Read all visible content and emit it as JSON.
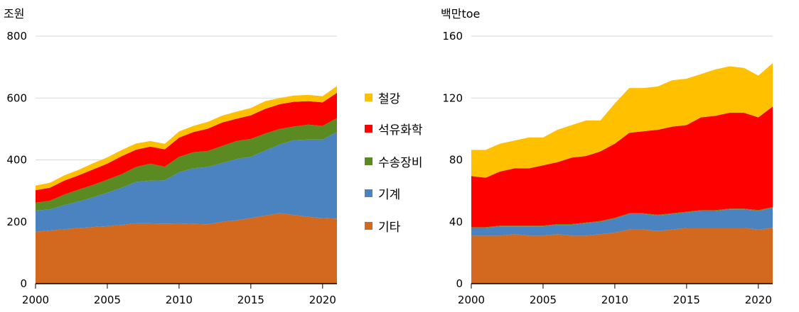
{
  "colors": {
    "steel": "#FFC000",
    "petrochemical": "#FF0000",
    "transport": "#5B8A23",
    "machinery": "#4A83C0",
    "other": "#D2691E"
  },
  "legend": [
    {
      "label": "철강",
      "color": "#FFC000"
    },
    {
      "label": "석유화학",
      "color": "#FF0000"
    },
    {
      "label": "수송장비",
      "color": "#5B8A23"
    },
    {
      "label": "기계",
      "color": "#4A83C0"
    },
    {
      "label": "기타",
      "color": "#D2691E"
    }
  ],
  "chart_data": [
    {
      "type": "area",
      "stacked": true,
      "unit_label": "조원",
      "x": [
        2000,
        2001,
        2002,
        2003,
        2004,
        2005,
        2006,
        2007,
        2008,
        2009,
        2010,
        2011,
        2012,
        2013,
        2014,
        2015,
        2016,
        2017,
        2018,
        2019,
        2020,
        2021
      ],
      "ylim": [
        0,
        800
      ],
      "xlim": [
        2000,
        2021
      ],
      "yticks": [
        "0",
        "200",
        "400",
        "600",
        "800"
      ],
      "xticks": [
        "2000",
        "2005",
        "2010",
        "2015",
        "2020"
      ],
      "series": [
        {
          "name": "기타",
          "values": [
            168,
            172,
            176,
            180,
            183,
            186,
            190,
            195,
            195,
            194,
            195,
            193,
            192,
            200,
            205,
            212,
            220,
            228,
            222,
            216,
            212,
            210
          ]
        },
        {
          "name": "기계",
          "values": [
            68,
            68,
            78,
            86,
            96,
            108,
            120,
            134,
            138,
            140,
            165,
            180,
            185,
            190,
            198,
            198,
            210,
            222,
            242,
            250,
            254,
            280
          ]
        },
        {
          "name": "수송장비",
          "values": [
            26,
            28,
            34,
            38,
            40,
            42,
            44,
            48,
            55,
            44,
            50,
            52,
            52,
            55,
            58,
            58,
            55,
            50,
            44,
            48,
            44,
            45
          ]
        },
        {
          "name": "석유화학",
          "values": [
            40,
            42,
            45,
            46,
            50,
            52,
            58,
            56,
            55,
            56,
            62,
            65,
            72,
            76,
            72,
            76,
            80,
            80,
            80,
            76,
            76,
            82
          ]
        },
        {
          "name": "철강",
          "values": [
            15,
            16,
            17,
            18,
            20,
            20,
            20,
            20,
            18,
            18,
            20,
            20,
            22,
            22,
            23,
            24,
            25,
            20,
            20,
            20,
            20,
            22
          ]
        }
      ]
    },
    {
      "type": "area",
      "stacked": true,
      "unit_label": "백만toe",
      "x": [
        2000,
        2001,
        2002,
        2003,
        2004,
        2005,
        2006,
        2007,
        2008,
        2009,
        2010,
        2011,
        2012,
        2013,
        2014,
        2015,
        2016,
        2017,
        2018,
        2019,
        2020,
        2021
      ],
      "ylim": [
        0,
        160
      ],
      "xlim": [
        2000,
        2021
      ],
      "yticks": [
        "0",
        "40",
        "80",
        "120",
        "160"
      ],
      "xticks": [
        "2000",
        "2005",
        "2010",
        "2015",
        "2020"
      ],
      "series": [
        {
          "name": "기타",
          "values": [
            31,
            31,
            31,
            32,
            31,
            31,
            32,
            31,
            31,
            32,
            33,
            35,
            35,
            34,
            35,
            36,
            36,
            36,
            36,
            36,
            35,
            36
          ]
        },
        {
          "name": "기계",
          "values": [
            5,
            5,
            6,
            5,
            6,
            6,
            6,
            7,
            8,
            8,
            9,
            10,
            10,
            10,
            10,
            10,
            11,
            11,
            12,
            12,
            12,
            13
          ]
        },
        {
          "name": "수송장비",
          "values": [
            0.5,
            0.5,
            0.5,
            0.5,
            0.5,
            0.5,
            0.5,
            0.5,
            0.5,
            0.5,
            0.5,
            0.5,
            0.5,
            0.5,
            0.5,
            0.5,
            0.5,
            0.5,
            0.5,
            0.5,
            0.5,
            0.5
          ]
        },
        {
          "name": "석유화학",
          "values": [
            33,
            32,
            35,
            37,
            37,
            39,
            40,
            43,
            43,
            45,
            48,
            52,
            53,
            55,
            56,
            56,
            60,
            61,
            62,
            62,
            60,
            65
          ]
        },
        {
          "name": "철강",
          "values": [
            17,
            18,
            18,
            18,
            20,
            18,
            21,
            21,
            23,
            20,
            26,
            29,
            28,
            28,
            30,
            30,
            28,
            30,
            30,
            29,
            27,
            28
          ]
        }
      ]
    }
  ]
}
